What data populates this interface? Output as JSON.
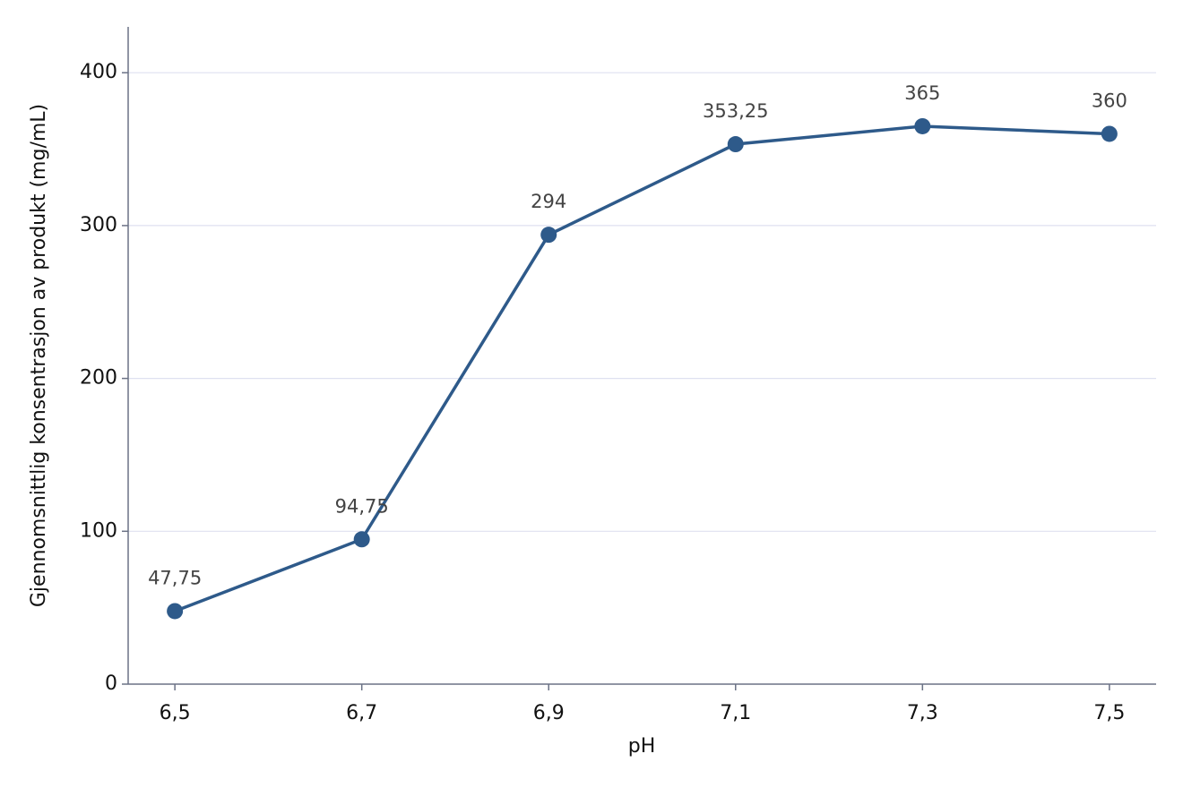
{
  "chart_data": {
    "type": "line",
    "x_label": "pH",
    "y_label": "Gjennomsnittlig konsentrasjon av produkt (mg/mL)",
    "x": [
      6.5,
      6.7,
      6.9,
      7.1,
      7.3,
      7.5
    ],
    "values": [
      47.75,
      94.75,
      294,
      353.25,
      365,
      360
    ],
    "value_labels": [
      "47,75",
      "94,75",
      "294",
      "353,25",
      "365",
      "360"
    ],
    "color": "#2e5a8a",
    "xlim": [
      6.45,
      7.55
    ],
    "xticks": [
      {
        "value": 6.5,
        "label": "6,5"
      },
      {
        "value": 6.7,
        "label": "6,7"
      },
      {
        "value": 6.9,
        "label": "6,9"
      },
      {
        "value": 7.1,
        "label": "7,1"
      },
      {
        "value": 7.3,
        "label": "7,3"
      },
      {
        "value": 7.5,
        "label": "7,5"
      }
    ],
    "ylim": [
      0,
      430
    ],
    "yticks": [
      0,
      100,
      200,
      300,
      400
    ],
    "grid": true
  }
}
